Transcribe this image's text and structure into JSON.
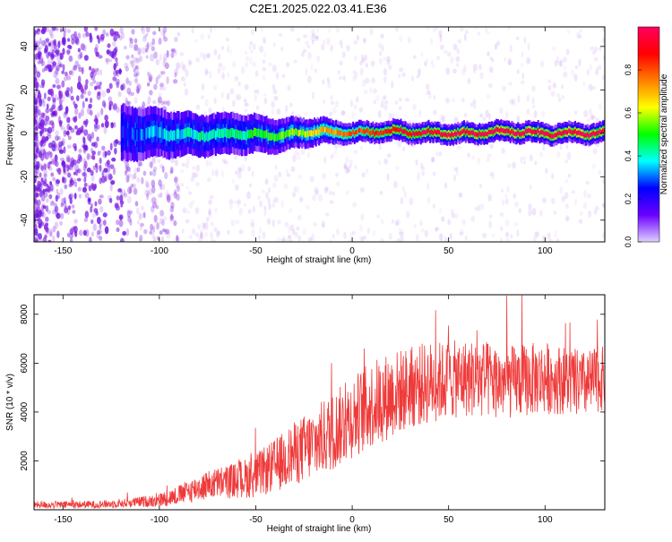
{
  "title": "C2E1.2025.022.03.41.E36",
  "colors": {
    "snr_line": "#ef3a3a",
    "speckle": "#8a2be2",
    "axis": "#000000"
  },
  "chart_data": [
    {
      "type": "heatmap",
      "xlabel": "Height of straight line (km)",
      "ylabel": "Frequency (Hz)",
      "xlim": [
        -165,
        131
      ],
      "ylim": [
        -50,
        49
      ],
      "x_ticks": [
        "-150",
        "-100",
        "-50",
        "0",
        "50",
        "100"
      ],
      "y_ticks": [
        "-40",
        "-20",
        "0",
        "20",
        "40"
      ],
      "colorbar": {
        "label": "Normalized spectral amplitude",
        "range": [
          0.0,
          1.0
        ],
        "ticks": [
          "0.0",
          "0.2",
          "0.4",
          "0.6",
          "0.8"
        ],
        "stops": [
          "#e0d0ff",
          "#6a00ff",
          "#0000ff",
          "#00ffff",
          "#00ff00",
          "#ffff00",
          "#ff7f00",
          "#ff0000",
          "#ff0060"
        ]
      },
      "signal_band": [
        {
          "x": -118,
          "center": 0,
          "halfwidth": 8,
          "peak": 0.25
        },
        {
          "x": -100,
          "center": 0,
          "halfwidth": 7,
          "peak": 0.35
        },
        {
          "x": -80,
          "center": -1,
          "halfwidth": 6,
          "peak": 0.4
        },
        {
          "x": -60,
          "center": 0,
          "halfwidth": 6,
          "peak": 0.45
        },
        {
          "x": -40,
          "center": -1,
          "halfwidth": 5,
          "peak": 0.5
        },
        {
          "x": -20,
          "center": 1,
          "halfwidth": 4,
          "peak": 0.65
        },
        {
          "x": 0,
          "center": 0,
          "halfwidth": 3,
          "peak": 0.8
        },
        {
          "x": 20,
          "center": 1,
          "halfwidth": 3,
          "peak": 0.9
        },
        {
          "x": 40,
          "center": 0,
          "halfwidth": 3,
          "peak": 0.95
        },
        {
          "x": 60,
          "center": 0,
          "halfwidth": 3,
          "peak": 0.98
        },
        {
          "x": 80,
          "center": 1,
          "halfwidth": 3,
          "peak": 0.98
        },
        {
          "x": 100,
          "center": 0,
          "halfwidth": 3,
          "peak": 0.98
        },
        {
          "x": 130,
          "center": 0,
          "halfwidth": 3,
          "peak": 0.98
        }
      ]
    },
    {
      "type": "line",
      "xlabel": "Height of straight line (km)",
      "ylabel": "SNR (10 * v/v)",
      "xlim": [
        -165,
        131
      ],
      "ylim": [
        0,
        8800
      ],
      "x_ticks": [
        "-150",
        "-100",
        "-50",
        "0",
        "50",
        "100"
      ],
      "y_ticks": [
        "2000",
        "4000",
        "6000",
        "8000"
      ],
      "series": [
        {
          "x": [
            -165,
            -150,
            -130,
            -120,
            -110,
            -100,
            -90,
            -80,
            -70,
            -60,
            -50,
            -40,
            -30,
            -20,
            -10,
            0,
            10,
            20,
            30,
            40,
            50,
            60,
            70,
            80,
            90,
            100,
            110,
            120,
            131
          ],
          "values": [
            200,
            200,
            220,
            260,
            320,
            400,
            600,
            900,
            1100,
            1200,
            1400,
            1800,
            2300,
            2700,
            3200,
            3800,
            4300,
            4700,
            5000,
            5200,
            5300,
            5400,
            5300,
            5200,
            5300,
            5400,
            5300,
            5100,
            5400
          ],
          "spread": [
            150,
            150,
            160,
            180,
            220,
            280,
            400,
            550,
            650,
            750,
            900,
            1100,
            1300,
            1500,
            1600,
            1700,
            1800,
            1800,
            1700,
            1700,
            1600,
            1600,
            1600,
            1500,
            1500,
            1500,
            1400,
            1400,
            1300
          ]
        }
      ]
    }
  ]
}
